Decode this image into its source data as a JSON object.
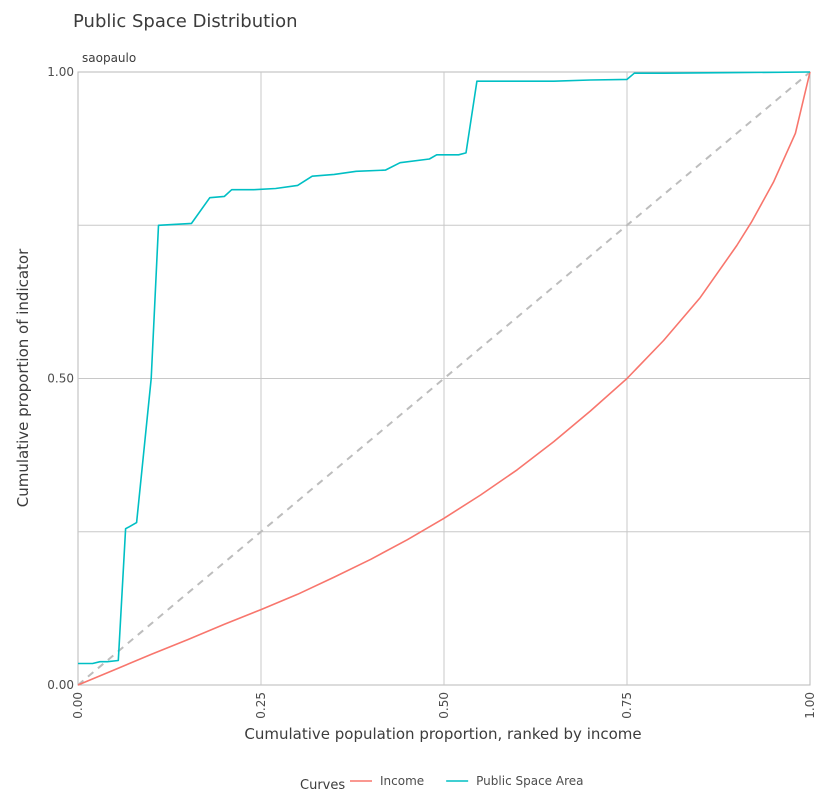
{
  "chart_data": {
    "type": "line",
    "title": "Public Space Distribution",
    "facet_label": "saopaulo",
    "xlabel": "Cumulative population proportion, ranked by income",
    "ylabel": "Cumulative proportion of indicator",
    "xlim": [
      0,
      1
    ],
    "ylim": [
      0,
      1
    ],
    "x_ticks": [
      "0.00",
      "0.25",
      "0.50",
      "0.75",
      "1.00"
    ],
    "y_ticks": [
      "0.00",
      "0.50",
      "1.00"
    ],
    "grid": true,
    "legend_title": "Curves",
    "legend_position": "bottom",
    "equality_line": {
      "from": [
        0,
        0
      ],
      "to": [
        1,
        1
      ],
      "color": "#bdbdbd",
      "style": "dashed"
    },
    "series": [
      {
        "name": "Income",
        "color": "#f8766d",
        "x": [
          0,
          0.05,
          0.1,
          0.15,
          0.2,
          0.25,
          0.3,
          0.35,
          0.4,
          0.45,
          0.5,
          0.55,
          0.6,
          0.65,
          0.7,
          0.75,
          0.8,
          0.85,
          0.9,
          0.92,
          0.95,
          0.98,
          1.0
        ],
        "y": [
          0,
          0.025,
          0.05,
          0.074,
          0.099,
          0.123,
          0.148,
          0.176,
          0.205,
          0.237,
          0.272,
          0.31,
          0.351,
          0.397,
          0.447,
          0.5,
          0.562,
          0.632,
          0.717,
          0.755,
          0.82,
          0.9,
          1.0
        ]
      },
      {
        "name": "Public Space Area",
        "color": "#00bfc4",
        "x": [
          0,
          0.02,
          0.03,
          0.04,
          0.055,
          0.065,
          0.07,
          0.08,
          0.1,
          0.11,
          0.155,
          0.18,
          0.2,
          0.21,
          0.24,
          0.27,
          0.3,
          0.32,
          0.35,
          0.38,
          0.42,
          0.44,
          0.48,
          0.49,
          0.52,
          0.53,
          0.545,
          0.6,
          0.65,
          0.7,
          0.75,
          0.76,
          0.8,
          0.9,
          1.0
        ],
        "y": [
          0.035,
          0.035,
          0.038,
          0.038,
          0.04,
          0.255,
          0.258,
          0.265,
          0.5,
          0.75,
          0.753,
          0.795,
          0.797,
          0.808,
          0.808,
          0.81,
          0.815,
          0.83,
          0.833,
          0.838,
          0.84,
          0.852,
          0.858,
          0.865,
          0.865,
          0.868,
          0.985,
          0.985,
          0.985,
          0.987,
          0.988,
          0.998,
          0.998,
          0.999,
          1.0
        ]
      }
    ]
  }
}
